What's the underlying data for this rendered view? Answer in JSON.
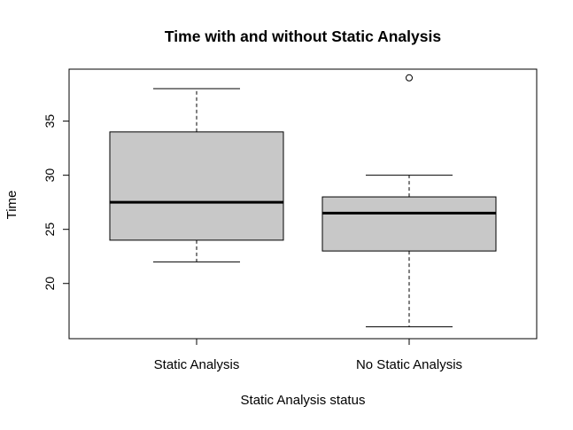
{
  "chart_data": {
    "type": "boxplot",
    "title": "Time with and without Static Analysis",
    "xlabel": "Static Analysis status",
    "ylabel": "Time",
    "categories": [
      "Static Analysis",
      "No Static Analysis"
    ],
    "yticks": [
      20,
      25,
      30,
      35
    ],
    "ylim": [
      14.9,
      39.8
    ],
    "grid": false,
    "legend": "none",
    "box_fill": "#c8c8c8",
    "line_color": "#000000",
    "boxes": [
      {
        "category": "Static Analysis",
        "whisker_low": 22,
        "q1": 24,
        "median": 27.5,
        "q3": 34,
        "whisker_high": 38,
        "outliers": []
      },
      {
        "category": "No Static Analysis",
        "whisker_low": 16,
        "q1": 23,
        "median": 26.5,
        "q3": 28,
        "whisker_high": 30,
        "outliers": [
          39
        ]
      }
    ]
  }
}
